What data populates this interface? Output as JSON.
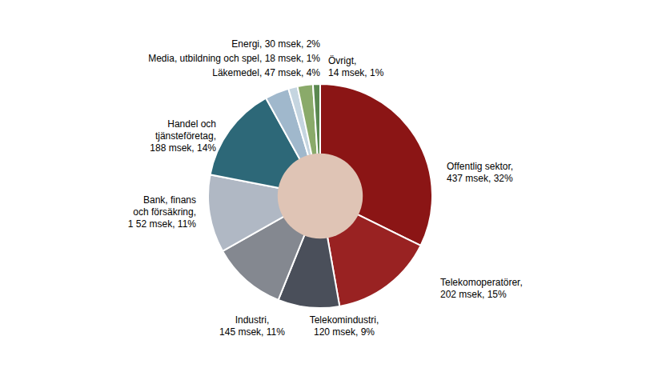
{
  "chart_data": {
    "type": "pie",
    "categories": [
      "Offentlig sektor,\n437 msek, 32%",
      "Telekomoperatörer,\n202 msek, 15%",
      "Telekomindustri,\n120 msek, 9%",
      "Industri,\n145 msek, 11%",
      "Bank, finans\noch försäkring,\n1 52 msek, 11%",
      "Handel och\ntjänsteföretag,\n188 msek, 14%",
      "Läkemedel, 47 msek, 4%",
      "Media, utbildning och spel, 18 msek, 1%",
      "Energi, 30 msek, 2%",
      "Övrigt,\n14 msek, 1%"
    ],
    "values": [
      437,
      202,
      120,
      145,
      152,
      188,
      47,
      18,
      30,
      14
    ],
    "colors": [
      "#8B1515",
      "#992222",
      "#4A4F5A",
      "#848890",
      "#B0B8C4",
      "#2D6878",
      "#A0B8CC",
      "#C5D5E0",
      "#8AAA6A",
      "#5A8850"
    ]
  }
}
